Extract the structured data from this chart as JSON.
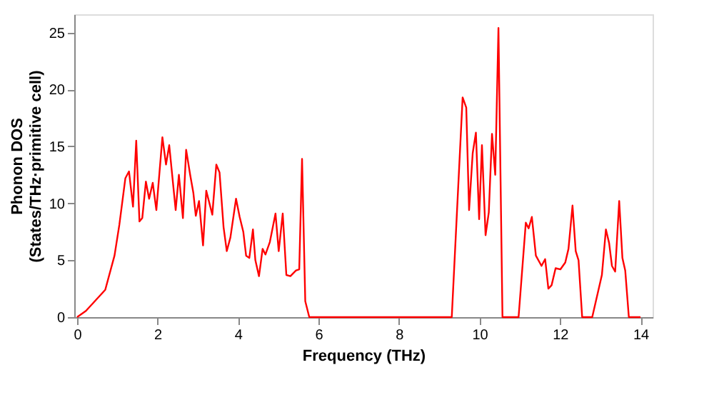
{
  "chart_data": {
    "type": "line",
    "xlabel": "Frequency (THz)",
    "ylabel": "Phonon DOS\n(States/THz·primitive cell)",
    "xlim": [
      -0.07,
      14.3
    ],
    "ylim": [
      0,
      26.6
    ],
    "xticks": [
      0,
      2,
      4,
      6,
      8,
      10,
      12,
      14
    ],
    "yticks": [
      0,
      5,
      10,
      15,
      20,
      25
    ],
    "grid": false,
    "series": [
      {
        "color": "#ff0000",
        "x": [
          0,
          0.22,
          0.7,
          0.93,
          1.05,
          1.2,
          1.29,
          1.39,
          1.47,
          1.55,
          1.62,
          1.71,
          1.79,
          1.88,
          1.97,
          2.12,
          2.21,
          2.29,
          2.45,
          2.53,
          2.63,
          2.71,
          2.81,
          2.89,
          2.95,
          3.03,
          3.13,
          3.21,
          3.36,
          3.46,
          3.54,
          3.64,
          3.72,
          3.81,
          3.95,
          4.04,
          4.13,
          4.2,
          4.28,
          4.37,
          4.43,
          4.52,
          4.61,
          4.68,
          4.79,
          4.93,
          5.01,
          5.11,
          5.2,
          5.3,
          5.44,
          5.52,
          5.59,
          5.67,
          5.77,
          9.31,
          9.58,
          9.67,
          9.74,
          9.83,
          9.91,
          9.99,
          10.06,
          10.15,
          10.23,
          10.31,
          10.39,
          10.47,
          10.57,
          10.97,
          11.15,
          11.22,
          11.3,
          11.4,
          11.54,
          11.63,
          11.71,
          11.79,
          11.89,
          12.01,
          12.13,
          12.21,
          12.31,
          12.39,
          12.46,
          12.55,
          12.8,
          13.04,
          13.14,
          13.22,
          13.29,
          13.37,
          13.47,
          13.55,
          13.62,
          13.71,
          14.0
        ],
        "values": [
          0,
          0.55,
          2.4,
          5.4,
          8.1,
          12.2,
          12.8,
          9.7,
          15.5,
          8.4,
          8.7,
          11.9,
          10.4,
          11.8,
          9.4,
          15.8,
          13.4,
          15.1,
          9.4,
          12.5,
          8.7,
          14.7,
          12.5,
          10.9,
          8.9,
          10.2,
          6.3,
          11.1,
          9.0,
          13.4,
          12.7,
          7.9,
          5.8,
          7.0,
          10.4,
          8.8,
          7.5,
          5.4,
          5.2,
          7.7,
          5.0,
          3.6,
          6.0,
          5.5,
          6.6,
          9.1,
          5.8,
          9.1,
          3.7,
          3.6,
          4.1,
          4.2,
          13.9,
          1.4,
          0,
          0,
          19.3,
          18.4,
          9.4,
          14.4,
          16.2,
          8.6,
          15.1,
          7.2,
          9.2,
          16.1,
          12.5,
          25.4,
          0,
          0,
          8.3,
          7.8,
          8.8,
          5.4,
          4.5,
          5.1,
          2.5,
          2.8,
          4.3,
          4.2,
          4.8,
          6.0,
          9.8,
          5.8,
          5.0,
          0,
          0,
          3.7,
          7.7,
          6.5,
          4.5,
          4.0,
          10.2,
          5.2,
          4.1,
          0,
          0
        ]
      }
    ]
  }
}
